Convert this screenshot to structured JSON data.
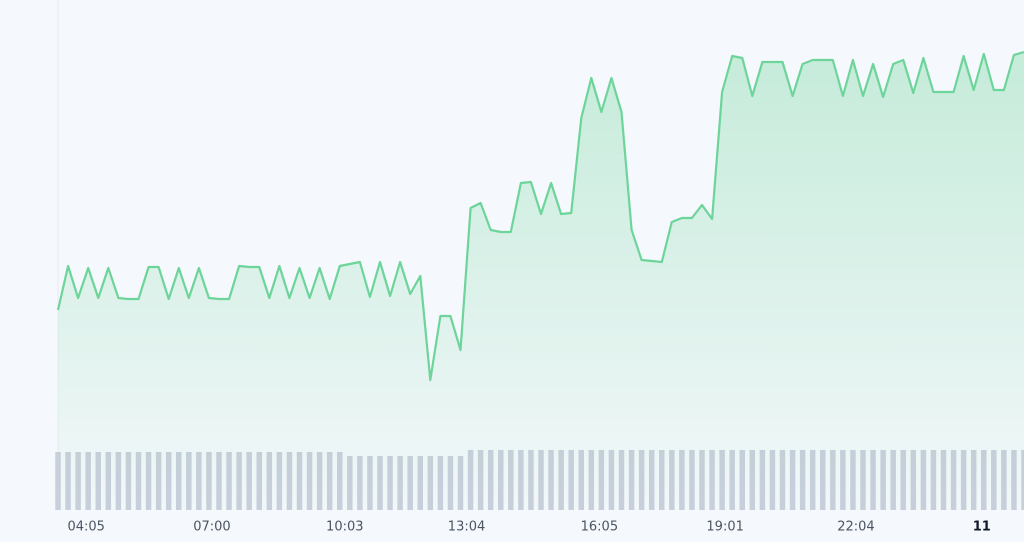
{
  "chart_data": {
    "type": "line",
    "color": "#6dd49a",
    "volume_color": "#c9cfdc",
    "xlim": [
      0,
      96
    ],
    "ylim": [
      0,
      510
    ],
    "y2lim": [
      0,
      60
    ],
    "xticks": [
      {
        "value": 2.8,
        "label": "04:05"
      },
      {
        "value": 15.3,
        "label": "07:00"
      },
      {
        "value": 28.5,
        "label": "10:03"
      },
      {
        "value": 40.6,
        "label": "13:04"
      },
      {
        "value": 53.8,
        "label": "16:05"
      },
      {
        "value": 66.3,
        "label": "19:01"
      },
      {
        "value": 79.3,
        "label": "22:04"
      },
      {
        "value": 91.8,
        "label": "11"
      }
    ],
    "values": [
      200,
      244,
      212,
      242,
      212,
      242,
      212,
      211,
      211,
      243,
      243,
      211,
      242,
      212,
      242,
      212,
      211,
      211,
      244,
      243,
      243,
      212,
      244,
      212,
      242,
      212,
      242,
      211,
      244,
      246,
      248,
      213,
      248,
      214,
      248,
      216,
      234,
      130,
      194,
      194,
      160,
      302,
      307,
      280,
      278,
      278,
      327,
      328,
      296,
      327,
      296,
      297,
      392,
      432,
      398,
      432,
      398,
      280,
      250,
      249,
      248,
      288,
      292,
      292,
      305,
      291,
      418,
      454,
      452,
      414,
      448,
      448,
      448,
      414,
      446,
      450,
      450,
      450,
      414,
      450,
      414,
      446,
      413,
      446,
      450,
      417,
      452,
      418,
      418,
      418,
      454,
      420,
      456,
      420,
      420,
      455,
      458
    ],
    "volume": [
      58,
      58,
      58,
      58,
      58,
      58,
      58,
      58,
      58,
      58,
      58,
      58,
      58,
      58,
      58,
      58,
      58,
      58,
      58,
      58,
      58,
      58,
      58,
      58,
      58,
      58,
      58,
      58,
      58,
      54,
      54,
      54,
      54,
      54,
      54,
      54,
      54,
      54,
      54,
      54,
      54,
      60,
      60,
      60,
      60,
      60,
      60,
      60,
      60,
      60,
      60,
      60,
      60,
      60,
      60,
      60,
      60,
      60,
      60,
      60,
      60,
      60,
      60,
      60,
      60,
      60,
      60,
      60,
      60,
      60,
      60,
      60,
      60,
      60,
      60,
      60,
      60,
      60,
      60,
      60,
      60,
      60,
      60,
      60,
      60,
      60,
      60,
      60,
      60,
      60,
      60,
      60,
      60,
      60,
      60,
      60,
      60
    ]
  }
}
